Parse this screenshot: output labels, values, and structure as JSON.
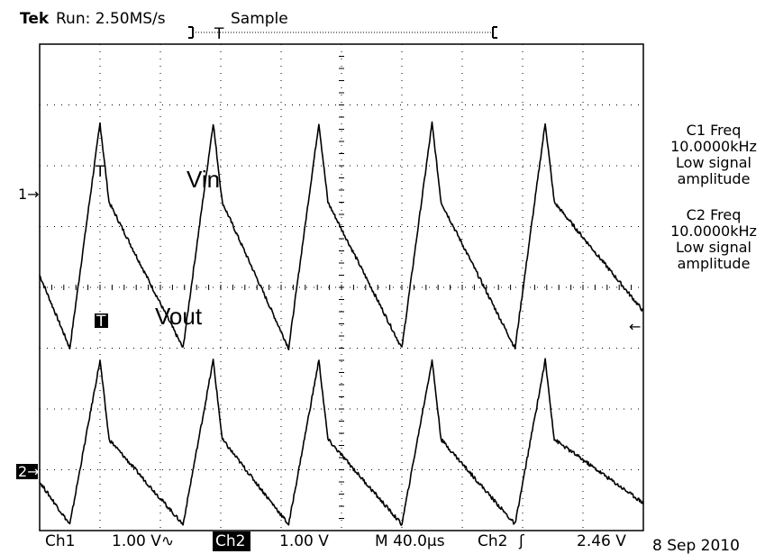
{
  "header": {
    "brand": "Tek",
    "run_state": "Run: 2.50MS/s",
    "acq_mode": "Sample",
    "trigger_marker": "T"
  },
  "measurements": [
    {
      "title": "C1 Freq",
      "value": "10.0000kHz",
      "note1": "Low signal",
      "note2": "amplitude"
    },
    {
      "title": "C2 Freq",
      "value": "10.0000kHz",
      "note1": "Low signal",
      "note2": "amplitude"
    }
  ],
  "markers": {
    "ch1": "1→",
    "ch2": "2→",
    "trigger": "T",
    "trigger_level": "←"
  },
  "footer": {
    "ch1_name": "Ch1",
    "ch1_scale": "1.00 V∿",
    "ch2_name": "Ch2",
    "ch2_scale": "1.00 V",
    "timebase": "M 40.0µs",
    "trig_source": "Ch2",
    "trig_slope": "ʃ",
    "trig_level": "2.46 V",
    "date": "8 Sep 2010"
  },
  "colors": {
    "trace": "#000000",
    "background": "#ffffff"
  },
  "chart_data": {
    "type": "line",
    "grid": {
      "h_divisions": 10,
      "v_divisions": 8,
      "visible": true
    },
    "x": {
      "unit": "µs",
      "range": [
        0,
        400
      ],
      "peaks": [
        40,
        115,
        185,
        260,
        335
      ],
      "peak_width": 10
    },
    "series": [
      {
        "name": "Vin",
        "min_level_div": -1.4,
        "max_level_div": 2.3,
        "drift_div": 0.8
      },
      {
        "name": "Vout",
        "min_level_div": -1.6,
        "max_level_div": 1.1,
        "drift_div": 0.8
      }
    ]
  }
}
